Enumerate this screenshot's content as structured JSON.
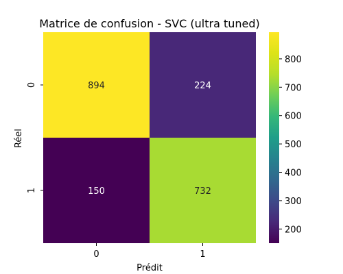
{
  "chart_data": {
    "type": "heatmap",
    "title": "Matrice de confusion - SVC (ultra tuned)",
    "xlabel": "Prédit",
    "ylabel": "Réel",
    "x_categories": [
      "0",
      "1"
    ],
    "y_categories": [
      "0",
      "1"
    ],
    "matrix": [
      [
        894,
        224
      ],
      [
        150,
        732
      ]
    ],
    "colormap": "viridis",
    "colorbar": {
      "min": 150,
      "max": 894,
      "ticks": [
        200,
        300,
        400,
        500,
        600,
        700,
        800
      ]
    },
    "annotation_colors": {
      "dark_text": "#262626",
      "light_text": "#ffffff"
    }
  }
}
